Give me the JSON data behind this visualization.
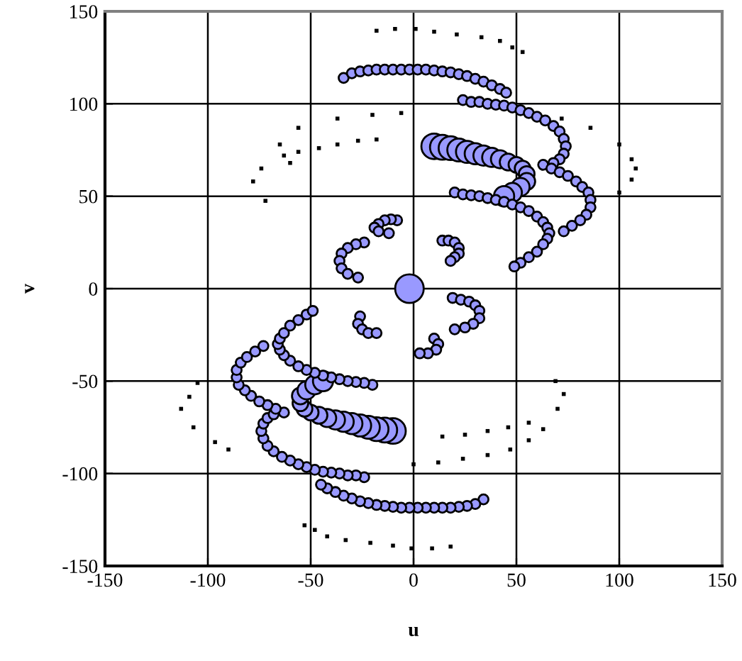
{
  "chart_data": {
    "type": "bubble",
    "xlabel": "u",
    "ylabel": "v",
    "xlim": [
      -150,
      150
    ],
    "ylim": [
      -150,
      150
    ],
    "xticks": [
      -150,
      -100,
      -50,
      0,
      50,
      100,
      150
    ],
    "yticks": [
      -150,
      -100,
      -50,
      0,
      50,
      100,
      150
    ],
    "grid": true,
    "legend": false,
    "series": [
      {
        "type": "scatter",
        "marker": "square",
        "color": "#000000",
        "x": [
          -18,
          -9,
          1,
          10,
          21,
          33,
          42,
          48,
          53
        ],
        "values": [
          139.5,
          140.5,
          140.5,
          139,
          137.5,
          136,
          134,
          130.5,
          128
        ]
      },
      {
        "type": "scatter",
        "marker": "square",
        "color": "#000000",
        "x": [
          -6,
          -20,
          -37,
          -56,
          -65,
          -74,
          -78,
          -72
        ],
        "values": [
          95,
          94,
          92,
          87,
          78,
          65,
          58,
          47.5
        ]
      },
      {
        "type": "scatter",
        "marker": "square",
        "color": "#000000",
        "x": [
          -18,
          -27,
          -37,
          -46,
          -56,
          -63,
          -60
        ],
        "values": [
          80.7,
          80,
          78,
          76,
          74,
          72,
          68
        ]
      },
      {
        "type": "scatter",
        "marker": "square",
        "color": "#000000",
        "x": [
          72,
          86,
          100,
          106,
          108,
          106,
          100
        ],
        "values": [
          92,
          87,
          78,
          70,
          65,
          59,
          52
        ]
      },
      {
        "type": "scatter",
        "marker": "square",
        "color": "#000000",
        "x": [
          18,
          9,
          -1,
          -10,
          -21,
          -33,
          -42,
          -48,
          -53
        ],
        "values": [
          -139.5,
          -140.5,
          -140.5,
          -139,
          -137.5,
          -136,
          -134,
          -130.5,
          -128
        ]
      },
      {
        "type": "scatter",
        "marker": "square",
        "color": "#000000",
        "x": [
          0,
          12,
          24,
          36,
          47,
          56,
          63,
          70,
          73,
          69
        ],
        "values": [
          -95,
          -94,
          -92,
          -90,
          -87,
          -82,
          -76,
          -65,
          -57,
          -50
        ]
      },
      {
        "type": "scatter",
        "marker": "square",
        "color": "#000000",
        "x": [
          14,
          25,
          36,
          46,
          56
        ],
        "values": [
          -80,
          -79,
          -77,
          -75,
          -72.5
        ]
      },
      {
        "type": "scatter",
        "marker": "square",
        "color": "#000000",
        "x": [
          -90,
          -96.5,
          -107,
          -113,
          -109,
          -105
        ],
        "values": [
          -87,
          -83,
          -75,
          -65,
          -58.5,
          -51
        ]
      },
      {
        "type": "bubble",
        "marker": "circle",
        "color": "#9999ff",
        "x": [
          -34,
          -30,
          -26,
          -22,
          -18,
          -14,
          -10,
          -6,
          -2,
          2,
          6,
          10,
          14,
          18,
          22,
          26,
          30,
          34,
          38,
          42,
          45
        ],
        "values": [
          114,
          116.5,
          117.5,
          118,
          118.5,
          118.5,
          118.5,
          118.5,
          118.5,
          118.5,
          118.5,
          118,
          117.5,
          117,
          116,
          115,
          113.5,
          112,
          110,
          108,
          106
        ],
        "sizes": [
          0.12,
          0.12,
          0.12,
          0.12,
          0.12,
          0.12,
          0.12,
          0.12,
          0.12,
          0.12,
          0.12,
          0.12,
          0.12,
          0.12,
          0.12,
          0.12,
          0.12,
          0.12,
          0.12,
          0.12,
          0.12
        ]
      },
      {
        "type": "bubble",
        "marker": "circle",
        "color": "#9999ff",
        "x": [
          24,
          28,
          32,
          36,
          40,
          44,
          48,
          52,
          56,
          60,
          64,
          68,
          71,
          73,
          74,
          73,
          71,
          68
        ],
        "values": [
          102,
          101,
          101,
          100,
          99.5,
          99,
          98,
          96.5,
          95,
          93,
          91,
          88,
          85,
          81,
          77,
          73,
          70,
          68
        ],
        "sizes": [
          0.12,
          0.12,
          0.12,
          0.12,
          0.12,
          0.12,
          0.12,
          0.12,
          0.12,
          0.12,
          0.12,
          0.12,
          0.12,
          0.12,
          0.12,
          0.12,
          0.12,
          0.12
        ]
      },
      {
        "type": "bubble",
        "marker": "circle",
        "color": "#9999ff",
        "x": [
          10,
          14,
          18,
          22,
          26,
          30,
          34,
          38,
          42,
          46,
          50,
          53,
          55,
          55,
          52,
          48,
          44
        ],
        "values": [
          77,
          76.5,
          76,
          75,
          74,
          73,
          72,
          71,
          70,
          68.5,
          67,
          65,
          62,
          58,
          55,
          52,
          50
        ],
        "sizes": [
          0.8,
          0.75,
          0.7,
          0.65,
          0.6,
          0.55,
          0.5,
          0.45,
          0.4,
          0.35,
          0.3,
          0.3,
          0.3,
          0.35,
          0.4,
          0.45,
          0.5
        ]
      },
      {
        "type": "bubble",
        "marker": "circle",
        "color": "#9999ff",
        "x": [
          20,
          24,
          28,
          32,
          36,
          40,
          44,
          48,
          52,
          56,
          60,
          63,
          65,
          66,
          65,
          63,
          60,
          56,
          52,
          49
        ],
        "values": [
          52,
          51,
          50.5,
          50,
          49,
          48,
          47,
          45.5,
          44,
          42,
          39,
          36,
          33,
          30,
          27,
          24,
          20,
          17,
          14,
          12
        ],
        "sizes": [
          0.12,
          0.12,
          0.12,
          0.12,
          0.12,
          0.12,
          0.12,
          0.12,
          0.12,
          0.12,
          0.12,
          0.12,
          0.12,
          0.12,
          0.12,
          0.12,
          0.12,
          0.12,
          0.12,
          0.12
        ]
      },
      {
        "type": "bubble",
        "marker": "circle",
        "color": "#9999ff",
        "x": [
          63,
          67,
          71,
          75,
          79,
          82,
          85,
          86,
          86,
          84,
          81,
          77,
          73
        ],
        "values": [
          67,
          65,
          63,
          61,
          58,
          55,
          52,
          48,
          44,
          40,
          37,
          34,
          31
        ],
        "sizes": [
          0.12,
          0.12,
          0.12,
          0.12,
          0.12,
          0.12,
          0.12,
          0.12,
          0.12,
          0.12,
          0.12,
          0.12,
          0.12
        ]
      },
      {
        "type": "bubble",
        "marker": "circle",
        "color": "#9999ff",
        "x": [
          -8,
          -11,
          -14,
          -17,
          -19,
          -17,
          -12
        ],
        "values": [
          37,
          37.5,
          37,
          35,
          33,
          31,
          30
        ],
        "sizes": [
          0.12,
          0.12,
          0.12,
          0.12,
          0.12,
          0.12,
          0.12
        ]
      },
      {
        "type": "bubble",
        "marker": "circle",
        "color": "#9999ff",
        "x": [
          -24,
          -28,
          -32,
          -35,
          -36,
          -35,
          -32,
          -27
        ],
        "values": [
          25,
          24,
          22,
          19,
          15,
          11,
          8,
          6
        ],
        "sizes": [
          0.12,
          0.12,
          0.12,
          0.12,
          0.12,
          0.12,
          0.12,
          0.12
        ]
      },
      {
        "type": "bubble",
        "marker": "circle",
        "color": "#9999ff",
        "x": [
          14,
          17,
          20,
          22,
          22,
          20,
          18
        ],
        "values": [
          26,
          26,
          25,
          22,
          19,
          17,
          15
        ],
        "sizes": [
          0.12,
          0.12,
          0.12,
          0.12,
          0.12,
          0.12,
          0.12
        ]
      },
      {
        "type": "bubble",
        "marker": "circle",
        "color": "#9999ff",
        "x": [
          34,
          30,
          26,
          22,
          18,
          14,
          10,
          6,
          2,
          -2,
          -6,
          -10,
          -14,
          -18,
          -22,
          -26,
          -30,
          -34,
          -38,
          -42,
          -45
        ],
        "values": [
          -114,
          -116.5,
          -117.5,
          -118,
          -118.5,
          -118.5,
          -118.5,
          -118.5,
          -118.5,
          -118.5,
          -118.5,
          -118,
          -117.5,
          -117,
          -116,
          -115,
          -113.5,
          -112,
          -110,
          -108,
          -106
        ],
        "sizes": [
          0.12,
          0.12,
          0.12,
          0.12,
          0.12,
          0.12,
          0.12,
          0.12,
          0.12,
          0.12,
          0.12,
          0.12,
          0.12,
          0.12,
          0.12,
          0.12,
          0.12,
          0.12,
          0.12,
          0.12,
          0.12
        ]
      },
      {
        "type": "bubble",
        "marker": "circle",
        "color": "#9999ff",
        "x": [
          -24,
          -28,
          -32,
          -36,
          -40,
          -44,
          -48,
          -52,
          -56,
          -60,
          -64,
          -68,
          -71,
          -73,
          -74,
          -73,
          -71,
          -68
        ],
        "values": [
          -102,
          -101,
          -101,
          -100,
          -99.5,
          -99,
          -98,
          -96.5,
          -95,
          -93,
          -91,
          -88,
          -85,
          -81,
          -77,
          -73,
          -70,
          -68
        ],
        "sizes": [
          0.12,
          0.12,
          0.12,
          0.12,
          0.12,
          0.12,
          0.12,
          0.12,
          0.12,
          0.12,
          0.12,
          0.12,
          0.12,
          0.12,
          0.12,
          0.12,
          0.12,
          0.12
        ]
      },
      {
        "type": "bubble",
        "marker": "circle",
        "color": "#9999ff",
        "x": [
          -10,
          -14,
          -18,
          -22,
          -26,
          -30,
          -34,
          -38,
          -42,
          -46,
          -50,
          -53,
          -55,
          -55,
          -52,
          -48,
          -44
        ],
        "values": [
          -77,
          -76.5,
          -76,
          -75,
          -74,
          -73,
          -72,
          -71,
          -70,
          -68.5,
          -67,
          -65,
          -62,
          -58,
          -55,
          -52,
          -50
        ],
        "sizes": [
          0.8,
          0.75,
          0.7,
          0.65,
          0.6,
          0.55,
          0.5,
          0.45,
          0.4,
          0.35,
          0.3,
          0.3,
          0.3,
          0.35,
          0.4,
          0.45,
          0.5
        ]
      },
      {
        "type": "bubble",
        "marker": "circle",
        "color": "#9999ff",
        "x": [
          -20,
          -24,
          -28,
          -32,
          -36,
          -40,
          -44,
          -48,
          -52,
          -56,
          -60,
          -63,
          -65,
          -66,
          -65,
          -63,
          -60,
          -56,
          -52,
          -49
        ],
        "values": [
          -52,
          -51,
          -50.5,
          -50,
          -49,
          -48,
          -47,
          -45.5,
          -44,
          -42,
          -39,
          -36,
          -33,
          -30,
          -27,
          -24,
          -20,
          -17,
          -14,
          -12
        ],
        "sizes": [
          0.12,
          0.12,
          0.12,
          0.12,
          0.12,
          0.12,
          0.12,
          0.12,
          0.12,
          0.12,
          0.12,
          0.12,
          0.12,
          0.12,
          0.12,
          0.12,
          0.12,
          0.12,
          0.12,
          0.12
        ]
      },
      {
        "type": "bubble",
        "marker": "circle",
        "color": "#9999ff",
        "x": [
          -63,
          -67,
          -71,
          -75,
          -79,
          -82,
          -85,
          -86,
          -86,
          -84,
          -81,
          -77,
          -73
        ],
        "values": [
          -67,
          -65,
          -63,
          -61,
          -58,
          -55,
          -52,
          -48,
          -44,
          -40,
          -37,
          -34,
          -31
        ],
        "sizes": [
          0.12,
          0.12,
          0.12,
          0.12,
          0.12,
          0.12,
          0.12,
          0.12,
          0.12,
          0.12,
          0.12,
          0.12,
          0.12
        ]
      },
      {
        "type": "bubble",
        "marker": "circle",
        "color": "#9999ff",
        "x": [
          19,
          23,
          27,
          30,
          32,
          32,
          29,
          25,
          20
        ],
        "values": [
          -5,
          -6,
          -7,
          -9,
          -12,
          -16,
          -19,
          -21,
          -22
        ],
        "sizes": [
          0.12,
          0.12,
          0.12,
          0.12,
          0.12,
          0.12,
          0.12,
          0.12,
          0.12
        ]
      },
      {
        "type": "bubble",
        "marker": "circle",
        "color": "#9999ff",
        "x": [
          10,
          12,
          11,
          7,
          3
        ],
        "values": [
          -27,
          -30,
          -33,
          -35,
          -35
        ],
        "sizes": [
          0.12,
          0.12,
          0.12,
          0.12,
          0.12
        ]
      },
      {
        "type": "bubble",
        "marker": "circle",
        "color": "#9999ff",
        "x": [
          -26,
          -27,
          -25,
          -22,
          -18
        ],
        "values": [
          -15,
          -19,
          -22,
          -24,
          -24
        ],
        "sizes": [
          0.12,
          0.12,
          0.12,
          0.12,
          0.12
        ]
      },
      {
        "type": "bubble",
        "marker": "circle",
        "color": "#9999ff",
        "x": [
          -2
        ],
        "values": [
          0
        ],
        "sizes": [
          1
        ]
      }
    ]
  }
}
